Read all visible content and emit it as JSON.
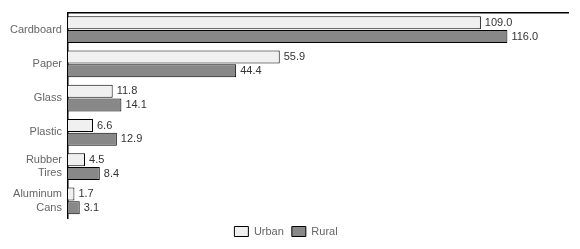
{
  "chart_data": {
    "type": "bar",
    "orientation": "horizontal",
    "categories": [
      "Aluminum\nCans",
      "Rubber\nTires",
      "Plastic",
      "Glass",
      "Paper",
      "Cardboard"
    ],
    "series": [
      {
        "name": "Urban",
        "color": "#f0f0f0",
        "values": [
          1.7,
          4.5,
          6.6,
          11.8,
          55.9,
          109.0
        ],
        "value_labels": [
          "1.7",
          "4.5",
          "6.6",
          "11.8",
          "55.9",
          "109.0"
        ]
      },
      {
        "name": "Rural",
        "color": "#888888",
        "values": [
          3.1,
          8.4,
          12.9,
          14.1,
          44.4,
          116.0
        ],
        "value_labels": [
          "3.1",
          "8.4",
          "12.9",
          "14.1",
          "44.4",
          "116.0"
        ]
      }
    ],
    "xlim": [
      0,
      132
    ],
    "grid": false,
    "legend": "bottom",
    "data_labels": true,
    "tick_labels": "y"
  }
}
